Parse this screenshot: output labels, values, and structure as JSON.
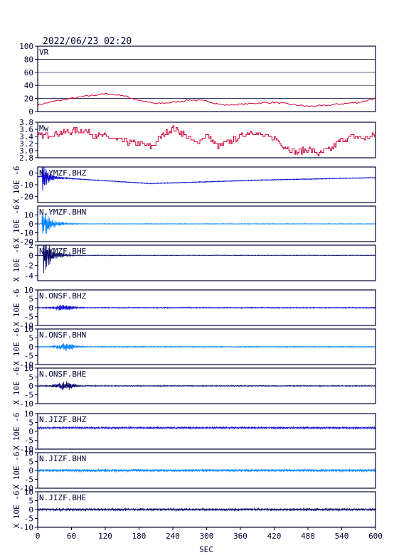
{
  "header": {
    "timestamp": "2022/06/23 02:20"
  },
  "colors": {
    "frame": "#000033",
    "vr_mw": "#cc0033",
    "bhz": "#0000cc",
    "bhn": "#0080ff",
    "bhe": "#000066"
  },
  "chart_data": {
    "type": "line",
    "xlabel": "SEC",
    "xlim": [
      0,
      600
    ],
    "xticks": [
      "0",
      "60",
      "120",
      "180",
      "240",
      "300",
      "360",
      "420",
      "480",
      "540",
      "600"
    ],
    "panels": [
      {
        "label": "VR",
        "kind": "vr",
        "ylim": [
          0,
          100
        ],
        "yticks": [
          "100",
          "80",
          "60",
          "40",
          "20",
          "0"
        ],
        "yunit": "",
        "color_key": "vr_mw",
        "grid": true,
        "x": [
          0,
          30,
          60,
          90,
          120,
          150,
          180,
          210,
          240,
          270,
          300,
          330,
          360,
          390,
          420,
          450,
          480,
          510,
          540,
          570,
          600
        ],
        "values": [
          10,
          16,
          20,
          24,
          27,
          25,
          17,
          12,
          14,
          18,
          16,
          10,
          11,
          13,
          14,
          11,
          8,
          9,
          12,
          14,
          20
        ]
      },
      {
        "label": "Mw",
        "kind": "mw",
        "ylim": [
          2.8,
          3.8
        ],
        "yticks": [
          "3.8",
          "3.6",
          "3.4",
          "3.2",
          "3.0",
          "2.8"
        ],
        "yunit": "",
        "color_key": "vr_mw",
        "grid": false,
        "x": [
          0,
          20,
          40,
          60,
          80,
          100,
          120,
          140,
          160,
          180,
          200,
          220,
          240,
          260,
          280,
          300,
          320,
          340,
          360,
          380,
          400,
          420,
          440,
          460,
          480,
          500,
          520,
          540,
          560,
          580,
          600
        ],
        "values": [
          3.4,
          3.45,
          3.5,
          3.55,
          3.58,
          3.45,
          3.4,
          3.3,
          3.25,
          3.2,
          3.1,
          3.4,
          3.65,
          3.45,
          3.2,
          3.45,
          3.1,
          3.25,
          3.4,
          3.55,
          3.4,
          3.35,
          3.1,
          2.95,
          3.05,
          2.9,
          3.05,
          3.3,
          3.4,
          3.35,
          3.45
        ]
      },
      {
        "label": "N.YMZF.BHZ",
        "kind": "wave",
        "ylim": [
          -25,
          5
        ],
        "yticks": [
          "0",
          "-10",
          "-20"
        ],
        "yunit": "X 10E -6",
        "color_key": "bhz",
        "trend": [
          -3,
          -9,
          -6,
          -4
        ],
        "peak": 12,
        "onset": 8,
        "decay": 0.09,
        "noise": 0.3
      },
      {
        "label": "N.YMZF.BHN",
        "kind": "wave",
        "ylim": [
          -20,
          20
        ],
        "yticks": [
          "10",
          "0",
          "-10",
          "-20"
        ],
        "yunit": "X 10E -6",
        "color_key": "bhn",
        "trend": [
          0,
          0,
          0,
          0
        ],
        "peak": 16,
        "onset": 8,
        "decay": 0.07,
        "noise": 0.3
      },
      {
        "label": "N.YMZF.BHE",
        "kind": "wave",
        "ylim": [
          -5,
          2
        ],
        "yticks": [
          "2",
          "0",
          "-2",
          "-4"
        ],
        "yunit": "X 10E -6",
        "color_key": "bhe",
        "trend": [
          0,
          0,
          0,
          0
        ],
        "peak": 4,
        "onset": 10,
        "decay": 0.08,
        "noise": 0.05
      },
      {
        "label": "N.ONSF.BHZ",
        "kind": "wave",
        "ylim": [
          -10,
          10
        ],
        "yticks": [
          "10",
          "5",
          "0",
          "-5",
          "-10"
        ],
        "yunit": "X 10E -6",
        "color_key": "bhz",
        "trend": [
          0,
          0,
          0,
          0
        ],
        "peak": 1.2,
        "center": 45,
        "width": 18,
        "noise": 0.25
      },
      {
        "label": "N.ONSF.BHN",
        "kind": "wave",
        "ylim": [
          -10,
          10
        ],
        "yticks": [
          "10",
          "5",
          "0",
          "-5",
          "-10"
        ],
        "yunit": "X 10E -6",
        "color_key": "bhn",
        "trend": [
          0,
          0,
          0,
          0
        ],
        "peak": 1.5,
        "center": 50,
        "width": 18,
        "noise": 0.25
      },
      {
        "label": "N.ONSF.BHE",
        "kind": "wave",
        "ylim": [
          -10,
          10
        ],
        "yticks": [
          "10",
          "5",
          "0",
          "-5",
          "-10"
        ],
        "yunit": "X 10E -6",
        "color_key": "bhe",
        "trend": [
          0,
          0,
          0,
          0
        ],
        "peak": 1.8,
        "center": 48,
        "width": 18,
        "noise": 0.25
      },
      {
        "label": "N.JIZF.BHZ",
        "kind": "wave",
        "ylim": [
          -10,
          10
        ],
        "yticks": [
          "10",
          "5",
          "0",
          "-5",
          "-10"
        ],
        "yunit": "X 10E -6",
        "color_key": "bhz",
        "trend": [
          2,
          2,
          2,
          2
        ],
        "peak": 0,
        "noise": 0.45
      },
      {
        "label": "N.JIZF.BHN",
        "kind": "wave",
        "ylim": [
          -10,
          10
        ],
        "yticks": [
          "10",
          "5",
          "0",
          "-5",
          "-10"
        ],
        "yunit": "X 10E -6",
        "color_key": "bhn",
        "trend": [
          0,
          0,
          0,
          0
        ],
        "peak": 0,
        "noise": 0.6
      },
      {
        "label": "N.JIZF.BHE",
        "kind": "wave",
        "ylim": [
          -10,
          10
        ],
        "yticks": [
          "10",
          "5",
          "0",
          "-5",
          "-10"
        ],
        "yunit": "X 10E -6",
        "color_key": "bhe",
        "trend": [
          0,
          0,
          0,
          0
        ],
        "peak": 0,
        "noise": 0.55
      }
    ]
  }
}
